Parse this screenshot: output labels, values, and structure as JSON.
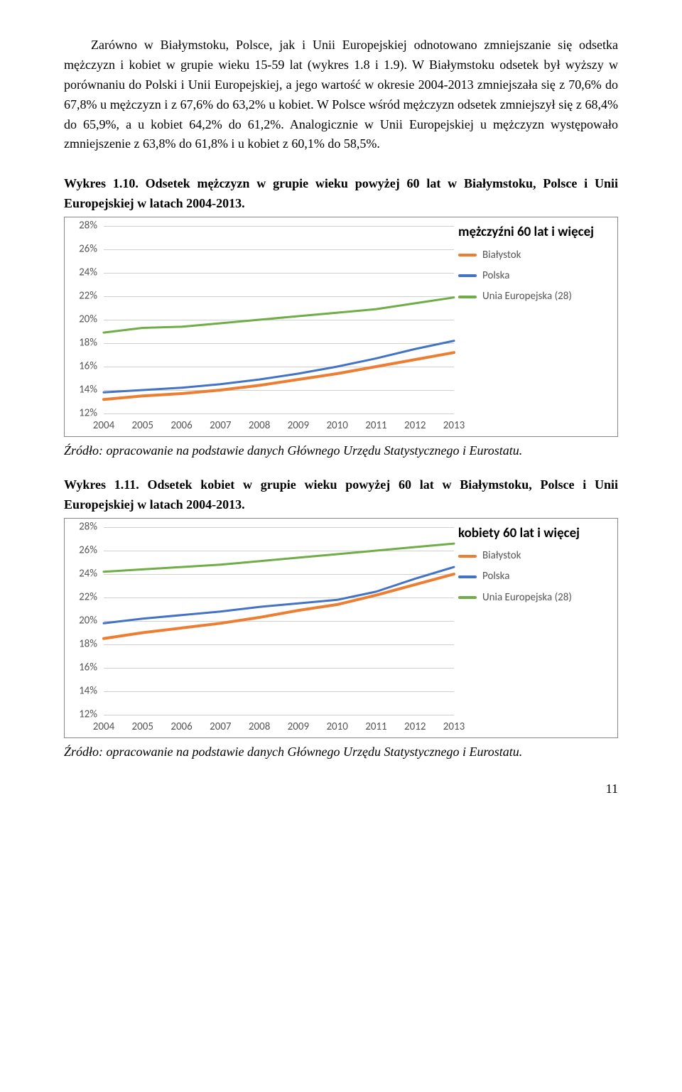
{
  "paragraph": "Zarówno w Białymstoku, Polsce, jak i Unii Europejskiej odnotowano zmniejszanie się odsetka mężczyzn i kobiet w grupie wieku 15-59 lat (wykres 1.8 i 1.9). W Białymstoku odsetek był wyższy w porównaniu do Polski i Unii Europejskiej, a jego wartość w okresie 2004-2013 zmniejszała się z 70,6% do 67,8% u mężczyzn i z 67,6% do 63,2% u kobiet. W Polsce wśród mężczyzn odsetek zmniejszył się z 68,4% do 65,9%, a u kobiet 64,2% do 61,2%. Analogicznie w Unii Europejskiej u mężczyzn występowało zmniejszenie z 63,8% do 61,8% i u kobiet z 60,1% do 58,5%.",
  "chart1": {
    "title": "Wykres 1.10. Odsetek mężczyzn w grupie wieku powyżej 60 lat w Białymstoku, Polsce i Unii Europejskiej w latach 2004-2013.",
    "type": "line",
    "legend_title": "mężczyźni 60 lat i więcej",
    "yticks": [
      "28%",
      "26%",
      "24%",
      "22%",
      "20%",
      "18%",
      "16%",
      "14%",
      "12%"
    ],
    "ylim_min": 12,
    "ylim_max": 28,
    "xlabels": [
      "2004",
      "2005",
      "2006",
      "2007",
      "2008",
      "2009",
      "2010",
      "2011",
      "2012",
      "2013"
    ],
    "series": [
      {
        "name": "Białystok",
        "color": "#ed7d31",
        "width": 4,
        "values": [
          13.2,
          13.5,
          13.7,
          14.0,
          14.4,
          14.9,
          15.4,
          16.0,
          16.6,
          17.2
        ]
      },
      {
        "name": "Polska",
        "color": "#4472c4",
        "width": 3,
        "values": [
          13.8,
          14.0,
          14.2,
          14.5,
          14.9,
          15.4,
          16.0,
          16.7,
          17.5,
          18.2
        ]
      },
      {
        "name": "Unia Europejska (28)",
        "color": "#70ad47",
        "width": 3,
        "values": [
          18.9,
          19.3,
          19.4,
          19.7,
          20.0,
          20.3,
          20.6,
          20.9,
          21.4,
          21.9
        ]
      }
    ],
    "grid_color": "#d0d0d0",
    "background_color": "#ffffff",
    "label_fontsize": 15,
    "legend_fontsize": 15,
    "legend_title_fontsize": 19
  },
  "source1": "Źródło: opracowanie na podstawie danych Głównego Urzędu Statystycznego i Eurostatu.",
  "chart2": {
    "title": "Wykres 1.11. Odsetek kobiet w grupie wieku powyżej 60 lat w Białymstoku, Polsce i Unii Europejskiej w latach 2004-2013.",
    "type": "line",
    "legend_title": "kobiety 60 lat i więcej",
    "yticks": [
      "28%",
      "26%",
      "24%",
      "22%",
      "20%",
      "18%",
      "16%",
      "14%",
      "12%"
    ],
    "ylim_min": 12,
    "ylim_max": 28,
    "xlabels": [
      "2004",
      "2005",
      "2006",
      "2007",
      "2008",
      "2009",
      "2010",
      "2011",
      "2012",
      "2013"
    ],
    "series": [
      {
        "name": "Białystok",
        "color": "#ed7d31",
        "width": 4,
        "values": [
          18.5,
          19.0,
          19.4,
          19.8,
          20.3,
          20.9,
          21.4,
          22.2,
          23.1,
          24.0
        ]
      },
      {
        "name": "Polska",
        "color": "#4472c4",
        "width": 3,
        "values": [
          19.8,
          20.2,
          20.5,
          20.8,
          21.2,
          21.5,
          21.8,
          22.5,
          23.6,
          24.6
        ]
      },
      {
        "name": "Unia Europejska (28)",
        "color": "#70ad47",
        "width": 3,
        "values": [
          24.2,
          24.4,
          24.6,
          24.8,
          25.1,
          25.4,
          25.7,
          26.0,
          26.3,
          26.6
        ]
      }
    ],
    "grid_color": "#d0d0d0",
    "background_color": "#ffffff",
    "label_fontsize": 15,
    "legend_fontsize": 15,
    "legend_title_fontsize": 19
  },
  "source2": "Źródło: opracowanie na podstawie danych Głównego Urzędu Statystycznego i Eurostatu.",
  "page_number": "11"
}
